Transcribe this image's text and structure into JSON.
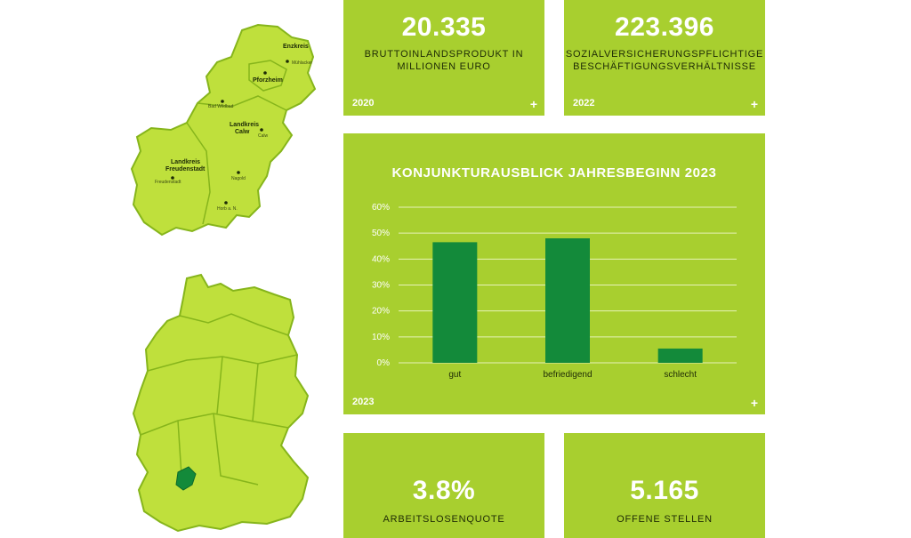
{
  "colors": {
    "card": "#a8cf2f",
    "bar": "#138a3a",
    "map": "#bfe03c",
    "map_border": "#86b51b"
  },
  "map": {
    "districts": [
      "Enzkreis",
      "Pforzheim",
      "Landkreis",
      "Calw",
      "Landkreis",
      "Freudenstadt"
    ],
    "towns": [
      "Mühlacker",
      "Bad Wildbad",
      "Calw",
      "Freudenstadt",
      "Nagold",
      "Horb a. N."
    ]
  },
  "cards": {
    "gdp": {
      "value": "20.335",
      "caption_line1": "BRUTTOINLANDSPRODUKT IN",
      "caption_line2": "MILLIONEN EURO",
      "year": "2020",
      "plus": "+"
    },
    "employment": {
      "value": "223.396",
      "caption_line1": "SOZIALVERSICHERUNGSPFLICHTIGE",
      "caption_line2": "BESCHÄFTIGUNGSVERHÄLTNISSE",
      "year": "2022",
      "plus": "+"
    },
    "chart": {
      "year": "2023",
      "plus": "+"
    },
    "unemployment": {
      "value": "3.8%",
      "caption": "ARBEITSLOSENQUOTE"
    },
    "jobs": {
      "value": "5.165",
      "caption": "OFFENE STELLEN"
    }
  },
  "chart_data": {
    "type": "bar",
    "title": "KONJUNKTURAUSBLICK JAHRESBEGINN 2023",
    "categories": [
      "gut",
      "befriedigend",
      "schlecht"
    ],
    "values": [
      46.5,
      48,
      5.5
    ],
    "ylim": [
      0,
      60
    ],
    "yticks": [
      "0%",
      "10%",
      "20%",
      "30%",
      "40%",
      "50%",
      "60%"
    ],
    "xlabel": "",
    "ylabel": "",
    "grid": true
  }
}
